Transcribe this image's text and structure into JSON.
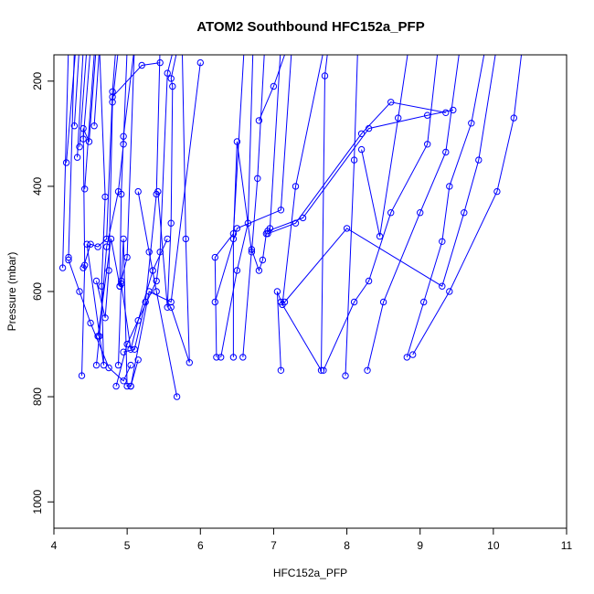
{
  "chart_data": {
    "type": "line",
    "title": "ATOM2 Southbound HFC152a_PFP",
    "xlabel": "HFC152a_PFP",
    "ylabel": "Pressure (mbar)",
    "xlim": [
      4,
      11
    ],
    "ylim": [
      1050,
      150
    ],
    "y_reversed": true,
    "x_ticks": [
      "4",
      "5",
      "6",
      "7",
      "8",
      "9",
      "10",
      "11"
    ],
    "y_ticks": [
      "200",
      "400",
      "600",
      "800",
      "1000"
    ],
    "grid": false,
    "legend": "none",
    "colors": {
      "series": "#0000ff",
      "axes": "#000000",
      "background": "#ffffff"
    },
    "marker": "open-circle",
    "series": [
      {
        "points": [
          [
            4.12,
            555
          ],
          [
            4.2,
            130
          ]
        ]
      },
      {
        "points": [
          [
            4.2,
            535
          ],
          [
            4.28,
            140
          ]
        ]
      },
      {
        "points": [
          [
            4.17,
            355
          ],
          [
            4.3,
            135
          ]
        ]
      },
      {
        "points": [
          [
            4.28,
            285
          ],
          [
            4.35,
            130
          ]
        ]
      },
      {
        "points": [
          [
            4.32,
            345
          ],
          [
            4.4,
            140
          ]
        ]
      },
      {
        "points": [
          [
            4.35,
            325
          ],
          [
            4.45,
            135
          ]
        ]
      },
      {
        "points": [
          [
            4.4,
            310
          ],
          [
            4.5,
            135
          ]
        ]
      },
      {
        "points": [
          [
            4.42,
            405
          ],
          [
            4.55,
            150
          ]
        ]
      },
      {
        "points": [
          [
            4.55,
            285
          ],
          [
            4.62,
            140
          ]
        ]
      },
      {
        "points": [
          [
            4.38,
            760
          ],
          [
            4.42,
            550
          ],
          [
            4.4,
            290
          ],
          [
            4.48,
            315
          ],
          [
            4.58,
            130
          ]
        ]
      },
      {
        "points": [
          [
            4.4,
            555
          ],
          [
            4.5,
            510
          ],
          [
            4.6,
            515
          ],
          [
            4.72,
            500
          ],
          [
            4.8,
            220
          ],
          [
            4.85,
            130
          ]
        ]
      },
      {
        "points": [
          [
            4.45,
            510
          ],
          [
            4.68,
            740
          ],
          [
            4.65,
            590
          ],
          [
            4.7,
            420
          ],
          [
            4.62,
            130
          ]
        ]
      },
      {
        "points": [
          [
            4.58,
            580
          ],
          [
            4.7,
            650
          ],
          [
            4.75,
            560
          ],
          [
            4.8,
            240
          ],
          [
            4.88,
            140
          ]
        ]
      },
      {
        "points": [
          [
            4.58,
            740
          ],
          [
            4.62,
            685
          ],
          [
            4.72,
            515
          ],
          [
            4.88,
            410
          ],
          [
            4.95,
            320
          ],
          [
            5.0,
            140
          ]
        ]
      },
      {
        "points": [
          [
            4.6,
            685
          ],
          [
            4.78,
            500
          ],
          [
            4.9,
            590
          ],
          [
            4.92,
            415
          ],
          [
            4.95,
            305
          ],
          [
            5.1,
            135
          ]
        ]
      },
      {
        "points": [
          [
            4.9,
            590
          ],
          [
            5.0,
            535
          ],
          [
            5.1,
            130
          ]
        ]
      },
      {
        "points": [
          [
            4.88,
            740
          ],
          [
            4.92,
            580
          ],
          [
            4.95,
            500
          ],
          [
            5.0,
            780
          ],
          [
            5.05,
            780
          ],
          [
            5.15,
            730
          ]
        ]
      },
      {
        "points": [
          [
            4.95,
            715
          ],
          [
            5.1,
            710
          ],
          [
            5.25,
            620
          ],
          [
            5.4,
            415
          ],
          [
            5.45,
            130
          ]
        ]
      },
      {
        "points": [
          [
            4.92,
            585
          ],
          [
            5.05,
            710
          ],
          [
            5.15,
            655
          ],
          [
            5.35,
            560
          ],
          [
            5.55,
            500
          ]
        ]
      },
      {
        "points": [
          [
            4.85,
            780
          ],
          [
            5.0,
            700
          ],
          [
            5.4,
            580
          ],
          [
            5.45,
            525
          ],
          [
            5.55,
            185
          ],
          [
            5.65,
            130
          ]
        ]
      },
      {
        "points": [
          [
            5.15,
            410
          ],
          [
            5.3,
            525
          ],
          [
            5.4,
            600
          ],
          [
            5.68,
            800
          ]
        ]
      },
      {
        "points": [
          [
            5.42,
            410
          ],
          [
            5.55,
            630
          ],
          [
            5.6,
            470
          ],
          [
            5.62,
            210
          ],
          [
            5.6,
            195
          ],
          [
            5.7,
            130
          ]
        ]
      },
      {
        "points": [
          [
            4.2,
            540
          ],
          [
            4.35,
            600
          ],
          [
            4.5,
            660
          ],
          [
            4.75,
            745
          ],
          [
            4.95,
            770
          ],
          [
            5.05,
            740
          ]
        ]
      },
      {
        "points": [
          [
            5.6,
            630
          ],
          [
            5.85,
            735
          ],
          [
            5.8,
            500
          ],
          [
            5.75,
            130
          ]
        ]
      },
      {
        "points": [
          [
            5.05,
            780
          ],
          [
            5.3,
            600
          ],
          [
            5.6,
            620
          ],
          [
            6.0,
            165
          ]
        ]
      },
      {
        "points": [
          [
            4.8,
            230
          ],
          [
            5.2,
            170
          ],
          [
            5.45,
            165
          ]
        ]
      },
      {
        "points": [
          [
            6.22,
            725
          ],
          [
            6.2,
            535
          ],
          [
            6.45,
            490
          ],
          [
            6.6,
            130
          ]
        ]
      },
      {
        "points": [
          [
            6.28,
            725
          ],
          [
            6.5,
            560
          ],
          [
            6.65,
            470
          ],
          [
            6.72,
            130
          ]
        ]
      },
      {
        "points": [
          [
            6.45,
            725
          ],
          [
            6.45,
            500
          ],
          [
            6.5,
            315
          ],
          [
            6.7,
            525
          ],
          [
            6.78,
            385
          ],
          [
            6.88,
            130
          ]
        ]
      },
      {
        "points": [
          [
            6.58,
            725
          ],
          [
            6.7,
            520
          ],
          [
            6.8,
            560
          ],
          [
            6.85,
            540
          ],
          [
            6.9,
            490
          ],
          [
            6.95,
            480
          ],
          [
            7.1,
            130
          ]
        ]
      },
      {
        "points": [
          [
            6.2,
            620
          ],
          [
            6.5,
            480
          ],
          [
            7.1,
            445
          ],
          [
            7.25,
            130
          ]
        ]
      },
      {
        "points": [
          [
            6.8,
            275
          ],
          [
            7.0,
            210
          ],
          [
            7.2,
            130
          ]
        ]
      },
      {
        "points": [
          [
            7.1,
            750
          ],
          [
            7.05,
            600
          ],
          [
            7.12,
            625
          ],
          [
            7.3,
            400
          ],
          [
            7.7,
            130
          ]
        ]
      },
      {
        "points": [
          [
            6.92,
            490
          ],
          [
            7.3,
            470
          ],
          [
            8.2,
            300
          ],
          [
            8.6,
            240
          ],
          [
            9.35,
            260
          ]
        ]
      },
      {
        "points": [
          [
            6.92,
            485
          ],
          [
            7.4,
            460
          ],
          [
            8.3,
            290
          ],
          [
            9.1,
            265
          ],
          [
            9.45,
            255
          ]
        ]
      },
      {
        "points": [
          [
            7.1,
            620
          ],
          [
            7.65,
            750
          ],
          [
            7.7,
            190
          ],
          [
            7.75,
            130
          ]
        ]
      },
      {
        "points": [
          [
            7.98,
            760
          ],
          [
            8.1,
            350
          ],
          [
            8.15,
            130
          ]
        ]
      },
      {
        "points": [
          [
            8.2,
            330
          ],
          [
            8.45,
            495
          ],
          [
            8.7,
            270
          ],
          [
            8.85,
            130
          ]
        ]
      },
      {
        "points": [
          [
            7.68,
            750
          ],
          [
            8.1,
            620
          ],
          [
            8.3,
            580
          ],
          [
            8.6,
            450
          ],
          [
            9.1,
            320
          ],
          [
            9.25,
            130
          ]
        ]
      },
      {
        "points": [
          [
            8.28,
            750
          ],
          [
            8.5,
            620
          ],
          [
            9.0,
            450
          ],
          [
            9.35,
            335
          ],
          [
            9.55,
            130
          ]
        ]
      },
      {
        "points": [
          [
            8.82,
            725
          ],
          [
            9.05,
            620
          ],
          [
            9.3,
            505
          ],
          [
            9.4,
            400
          ],
          [
            9.7,
            280
          ],
          [
            9.9,
            130
          ]
        ]
      },
      {
        "points": [
          [
            7.15,
            620
          ],
          [
            8.0,
            480
          ],
          [
            9.3,
            590
          ],
          [
            9.6,
            450
          ],
          [
            9.8,
            350
          ],
          [
            10.05,
            130
          ]
        ]
      },
      {
        "points": [
          [
            8.9,
            720
          ],
          [
            9.4,
            600
          ],
          [
            10.05,
            410
          ],
          [
            10.28,
            270
          ],
          [
            10.4,
            130
          ]
        ]
      }
    ]
  }
}
